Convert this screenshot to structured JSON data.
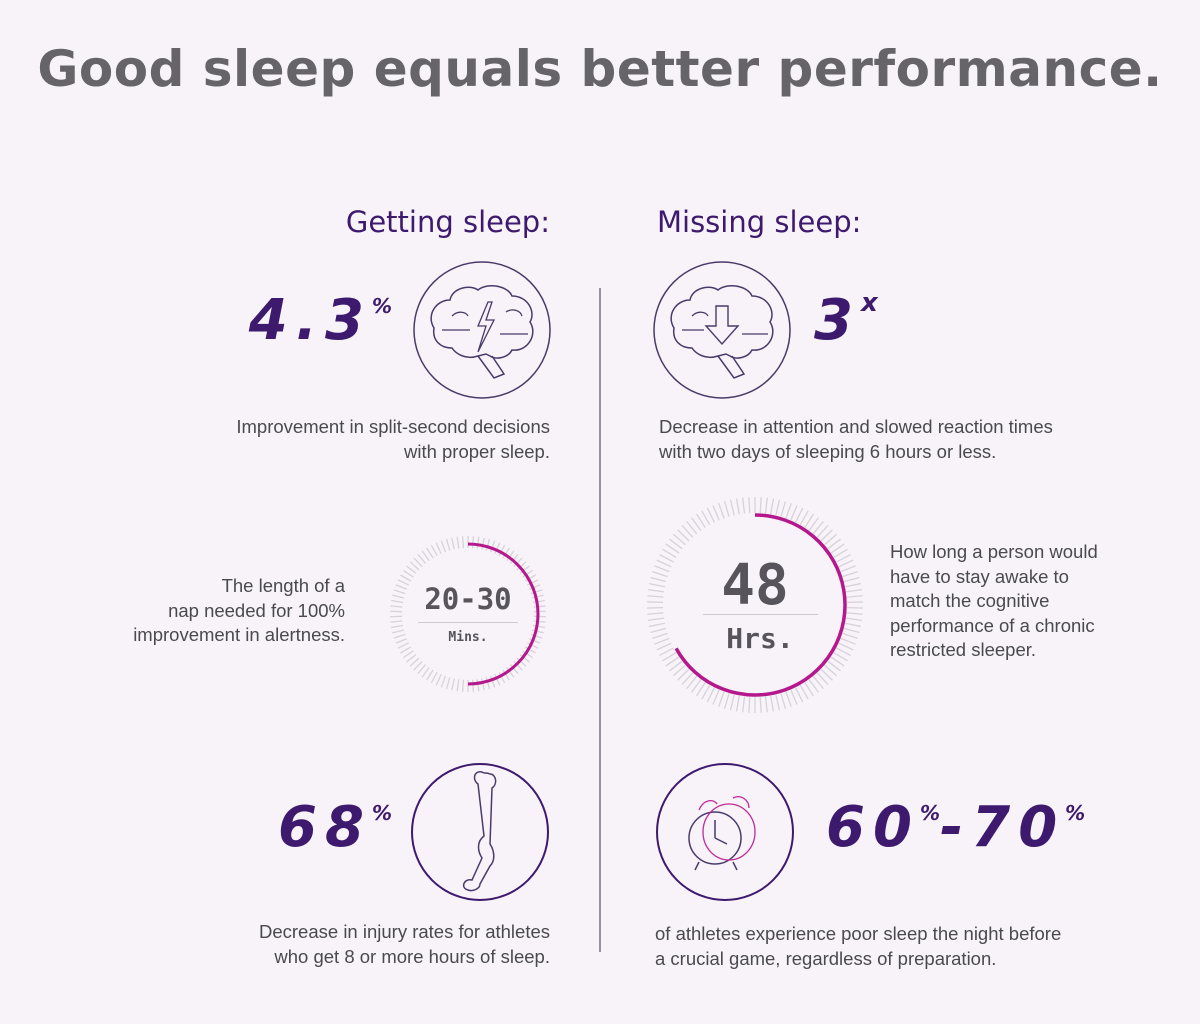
{
  "title": "Good sleep equals better performance.",
  "colors": {
    "background": "#f7f3f8",
    "accent_purple": "#3d1a6e",
    "accent_magenta": "#b5178c",
    "title_gray": "#666468"
  },
  "getting": {
    "heading": "Getting sleep:",
    "stat1": {
      "value": "4.3",
      "unit": "%",
      "icon": "brain-lightning-icon",
      "desc1": "Improvement in split-second decisions",
      "desc2": "with proper sleep."
    },
    "nap": {
      "value": "20-30",
      "unit": "Mins.",
      "progress_percent": 50,
      "desc1": "The length of a",
      "desc2": "nap needed for 100%",
      "desc3": "improvement in alertness."
    },
    "stat3": {
      "value": "68",
      "unit": "%",
      "icon": "bone-icon",
      "desc1": "Decrease in injury rates for athletes",
      "desc2": "who get 8 or more hours of sleep."
    }
  },
  "missing": {
    "heading": "Missing sleep:",
    "stat1": {
      "value": "3",
      "unit": "x",
      "icon": "brain-down-arrow-icon",
      "desc1": "Decrease in attention and slowed reaction times",
      "desc2": "with two days of sleeping 6 hours or less."
    },
    "awake": {
      "value": "48",
      "unit": "Hrs.",
      "progress_percent": 67,
      "desc1": "How long a person would",
      "desc2": "have to stay awake to",
      "desc3": "match the cognitive",
      "desc4": "performance of a chronic",
      "desc5": "restricted sleeper."
    },
    "stat3": {
      "value_a": "60",
      "unit_a": "%",
      "sep": "-",
      "value_b": "70",
      "unit_b": "%",
      "icon": "alarm-clock-icon",
      "desc1": "of athletes experience poor sleep the night before",
      "desc2": "a crucial game, regardless of preparation."
    }
  }
}
